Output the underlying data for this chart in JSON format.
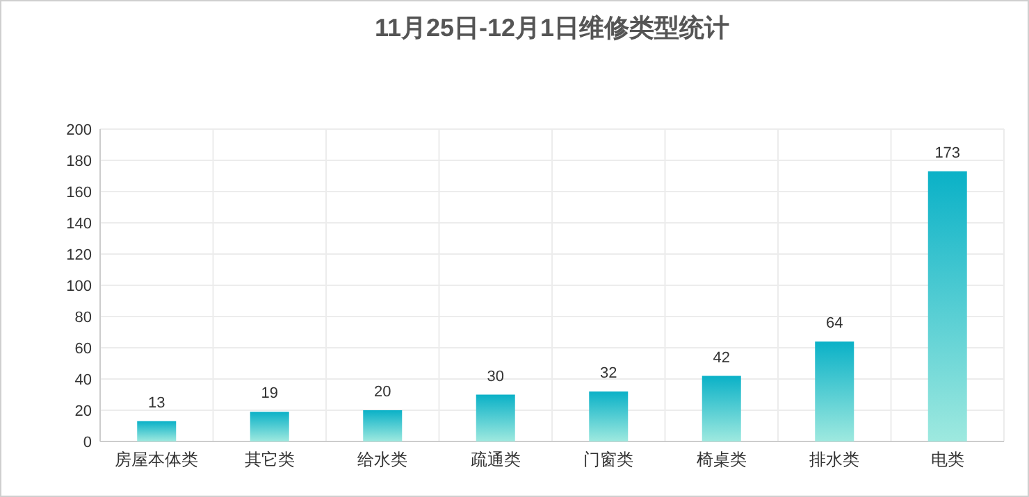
{
  "chart_data": {
    "type": "bar",
    "title": "11月25日-12月1日维修类型统计",
    "categories": [
      "房屋本体类",
      "其它类",
      "给水类",
      "疏通类",
      "门窗类",
      "椅桌类",
      "排水类",
      "电类"
    ],
    "values": [
      13,
      19,
      20,
      30,
      32,
      42,
      64,
      173
    ],
    "color": "#0ab1c7",
    "ylim": [
      0,
      200
    ],
    "yticks": [
      0,
      20,
      40,
      60,
      80,
      100,
      120,
      140,
      160,
      180,
      200
    ],
    "grid": true,
    "data_labels": true
  }
}
